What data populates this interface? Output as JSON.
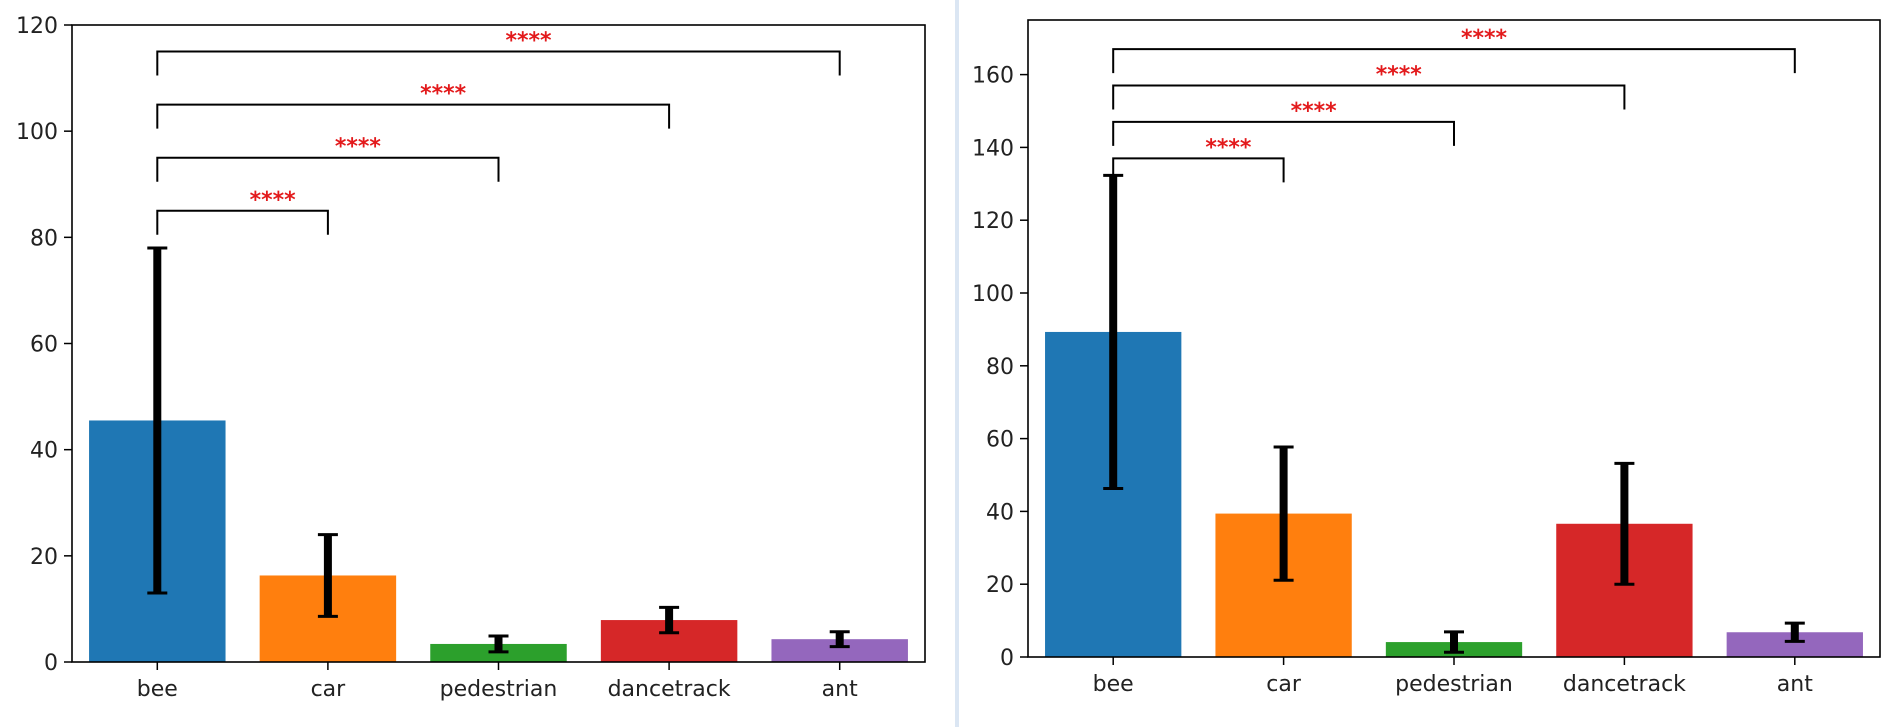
{
  "chart_data": [
    {
      "type": "bar",
      "categories": [
        "bee",
        "car",
        "pedestrian",
        "dancetrack",
        "ant"
      ],
      "values": [
        45.5,
        16.3,
        3.4,
        7.9,
        4.3
      ],
      "error": [
        32.5,
        7.7,
        1.5,
        2.4,
        1.4
      ],
      "colors": [
        "#1f77b4",
        "#ff7f0e",
        "#2ca02c",
        "#d62728",
        "#9467bd"
      ],
      "ylim": [
        0,
        120
      ],
      "yticks": [
        0,
        20,
        40,
        60,
        80,
        100,
        120
      ],
      "title": "",
      "xlabel": "",
      "ylabel": "",
      "significance": [
        {
          "from": "bee",
          "to": "car",
          "label": "****",
          "y": 85
        },
        {
          "from": "bee",
          "to": "pedestrian",
          "label": "****",
          "y": 95
        },
        {
          "from": "bee",
          "to": "dancetrack",
          "label": "****",
          "y": 105
        },
        {
          "from": "bee",
          "to": "ant",
          "label": "****",
          "y": 115
        }
      ],
      "sig_color": "#e31a1c"
    },
    {
      "type": "bar",
      "categories": [
        "bee",
        "car",
        "pedestrian",
        "dancetrack",
        "ant"
      ],
      "values": [
        89.3,
        39.4,
        4.1,
        36.6,
        6.8
      ],
      "error": [
        43.0,
        18.3,
        2.8,
        16.6,
        2.5
      ],
      "colors": [
        "#1f77b4",
        "#ff7f0e",
        "#2ca02c",
        "#d62728",
        "#9467bd"
      ],
      "ylim": [
        0,
        175
      ],
      "yticks": [
        0,
        20,
        40,
        60,
        80,
        100,
        120,
        140,
        160
      ],
      "title": "",
      "xlabel": "",
      "ylabel": "",
      "significance": [
        {
          "from": "bee",
          "to": "car",
          "label": "****",
          "y": 137
        },
        {
          "from": "bee",
          "to": "pedestrian",
          "label": "****",
          "y": 147
        },
        {
          "from": "bee",
          "to": "dancetrack",
          "label": "****",
          "y": 157
        },
        {
          "from": "bee",
          "to": "ant",
          "label": "****",
          "y": 167
        }
      ],
      "sig_color": "#e31a1c"
    }
  ]
}
